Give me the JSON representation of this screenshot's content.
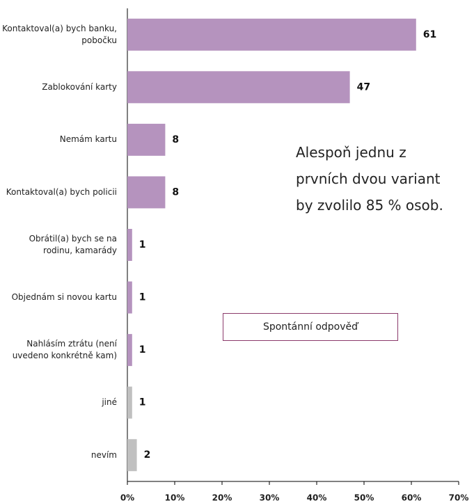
{
  "chart_data": {
    "type": "bar",
    "orientation": "horizontal",
    "categories": [
      "Kontaktoval(a) bych banku, pobočku",
      "Zablokování karty",
      "Nemám kartu",
      "Kontaktoval(a) bych policii",
      "Obrátil(a) bych se na rodinu, kamarády",
      "Objednám si novou kartu",
      "Nahlásím ztrátu (není uvedeno konkrétně kam)",
      "jiné",
      "nevím"
    ],
    "values": [
      61,
      47,
      8,
      8,
      1,
      1,
      1,
      1,
      2
    ],
    "colors": [
      "#b593be",
      "#b593be",
      "#b593be",
      "#b593be",
      "#b593be",
      "#b593be",
      "#b593be",
      "#c0c0c0",
      "#c0c0c0"
    ],
    "xlim": [
      0,
      70
    ],
    "xticks": [
      {
        "value": 0,
        "label": "0%"
      },
      {
        "value": 10,
        "label": "10%"
      },
      {
        "value": 20,
        "label": "20%"
      },
      {
        "value": 30,
        "label": "30%"
      },
      {
        "value": 40,
        "label": "40%"
      },
      {
        "value": 50,
        "label": "50%"
      },
      {
        "value": 60,
        "label": "60%"
      },
      {
        "value": 70,
        "label": "70%"
      }
    ],
    "annotation": "Alespoň jednu z prvních dvou variant by zvolilo 85 % osob.",
    "box_label": "Spontánní odpověď"
  }
}
